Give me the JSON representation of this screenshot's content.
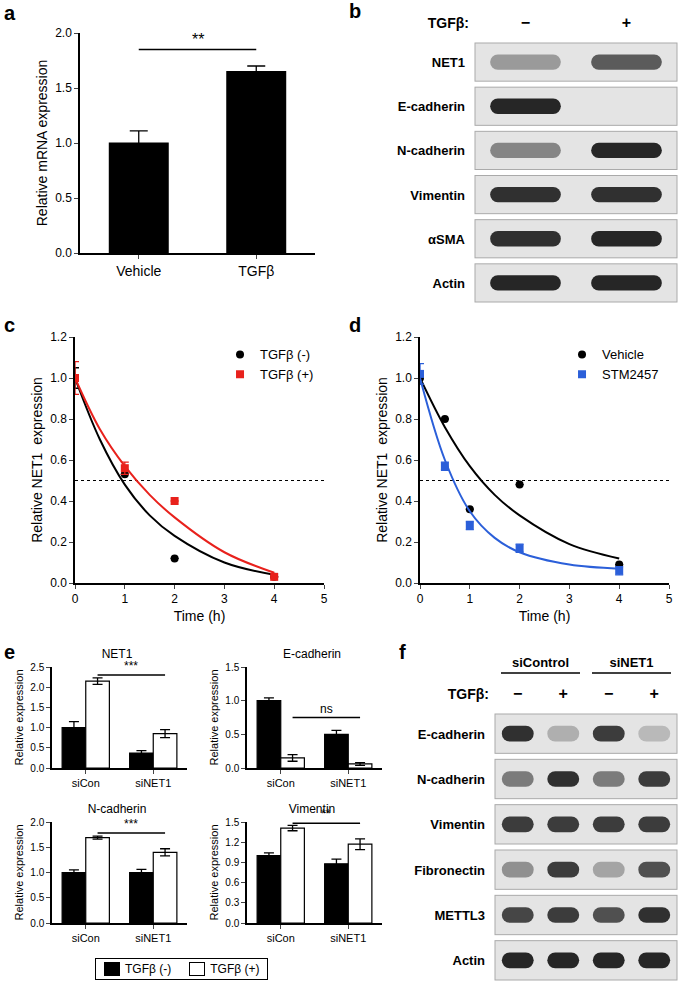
{
  "chart_data": [
    {
      "panel": "a",
      "type": "bar",
      "categories": [
        "Vehicle",
        "TGFβ"
      ],
      "values": [
        1.0,
        1.65
      ],
      "errors": [
        0.11,
        0.05
      ],
      "color": "#000000",
      "ylabel": "Relative mRNA expression",
      "ylim": [
        0,
        2
      ],
      "yticks": [
        {
          "value": 0,
          "label": "0.0"
        },
        0.5,
        {
          "value": 1,
          "label": "1.0"
        },
        1.5,
        {
          "value": 2,
          "label": "2.0"
        }
      ],
      "significance": {
        "text": "**",
        "from": "Vehicle",
        "to": "TGFβ",
        "y": 1.85
      }
    },
    {
      "panel": "c",
      "type": "line",
      "xlabel": "Time (h)",
      "ylabel": "Relative NET1  expression",
      "xlim": [
        0,
        5
      ],
      "xticks": [
        0,
        1,
        2,
        3,
        4,
        5
      ],
      "ylim": [
        0,
        1.2
      ],
      "yticks": [
        {
          "value": 0,
          "label": "0.0"
        },
        0.2,
        0.4,
        0.6,
        0.8,
        {
          "value": 1,
          "label": "1.0"
        },
        1.2
      ],
      "legend": "top-right",
      "reference_line": {
        "y": 0.5,
        "line_style": "dotted"
      },
      "series": [
        {
          "name": "TGFβ (-)",
          "color": "#000000",
          "marker": "circle",
          "x": [
            0,
            1,
            2,
            4
          ],
          "values": [
            1.0,
            0.53,
            0.12,
            0.03
          ],
          "errors": [
            0.05,
            0,
            0,
            0
          ],
          "fit": {
            "x": [
              0,
              0.5,
              1,
              1.5,
              2,
              3,
              4
            ],
            "values": [
              1.0,
              0.7,
              0.48,
              0.33,
              0.23,
              0.1,
              0.04
            ]
          }
        },
        {
          "name": "TGFβ (+)",
          "color": "#e8211c",
          "marker": "square",
          "x": [
            0,
            1,
            2,
            4
          ],
          "values": [
            1.0,
            0.56,
            0.4,
            0.03
          ],
          "errors": [
            0.08,
            0.03,
            0,
            0
          ],
          "fit": {
            "x": [
              0,
              0.5,
              1,
              1.5,
              2,
              3,
              4
            ],
            "values": [
              1.0,
              0.75,
              0.57,
              0.43,
              0.32,
              0.15,
              0.05
            ]
          }
        }
      ]
    },
    {
      "panel": "d",
      "type": "line",
      "xlabel": "Time (h)",
      "ylabel": "Relative NET1  expression",
      "xlim": [
        0,
        5
      ],
      "xticks": [
        0,
        1,
        2,
        3,
        4,
        5
      ],
      "ylim": [
        0,
        1.2
      ],
      "yticks": [
        {
          "value": 0,
          "label": "0.0"
        },
        0.2,
        0.4,
        0.6,
        0.8,
        {
          "value": 1,
          "label": "1.0"
        },
        1.2
      ],
      "legend": "top-right",
      "reference_line": {
        "y": 0.5,
        "line_style": "dotted"
      },
      "series": [
        {
          "name": "Vehicle",
          "color": "#000000",
          "marker": "circle",
          "x": [
            0,
            0.5,
            1,
            2,
            4
          ],
          "values": [
            1.0,
            0.8,
            0.36,
            0.48,
            0.09
          ],
          "errors": [
            0.03,
            0,
            0,
            0,
            0
          ],
          "fit": {
            "x": [
              0,
              0.5,
              1,
              1.5,
              2,
              3,
              4
            ],
            "values": [
              1.0,
              0.76,
              0.57,
              0.43,
              0.33,
              0.19,
              0.12
            ]
          }
        },
        {
          "name": "STM2457",
          "color": "#2b5fd9",
          "marker": "square",
          "x": [
            0,
            0.5,
            1,
            2,
            4
          ],
          "values": [
            1.02,
            0.57,
            0.28,
            0.17,
            0.06
          ],
          "errors": [
            0.05,
            0.02,
            0.02,
            0.02,
            0.02
          ],
          "fit": {
            "x": [
              0,
              0.5,
              1,
              1.5,
              2,
              3,
              4
            ],
            "values": [
              1.0,
              0.6,
              0.35,
              0.22,
              0.15,
              0.09,
              0.07
            ]
          }
        }
      ]
    },
    {
      "panel": "e",
      "type": "bar",
      "title": "NET1",
      "ylabel": "Relative expression",
      "categories": [
        "siCon",
        "siNET1"
      ],
      "ylim": [
        0,
        2.5
      ],
      "yticks": [
        {
          "value": 0,
          "label": "0.0"
        },
        0.5,
        {
          "value": 1,
          "label": "1.0"
        },
        1.5,
        {
          "value": 2,
          "label": "2.0"
        },
        2.5
      ],
      "series": [
        {
          "name": "TGFβ (-)",
          "color": "#000000",
          "values": [
            1.0,
            0.37
          ],
          "errors": [
            0.15,
            0.06
          ]
        },
        {
          "name": "TGFβ (+)",
          "color": "#ffffff",
          "values": [
            2.15,
            0.85
          ],
          "errors": [
            0.08,
            0.1
          ]
        }
      ],
      "significance": {
        "text": "***",
        "series": "TGFβ (+)",
        "y": 2.3
      }
    },
    {
      "type": "bar",
      "title": "E-cadherin",
      "ylabel": "Relative expression",
      "categories": [
        "siCon",
        "siNET1"
      ],
      "ylim": [
        0,
        1.5
      ],
      "yticks": [
        {
          "value": 0,
          "label": "0.0"
        },
        0.5,
        {
          "value": 1,
          "label": "1.0"
        },
        1.5
      ],
      "series": [
        {
          "name": "TGFβ (-)",
          "color": "#000000",
          "values": [
            1.0,
            0.5
          ],
          "errors": [
            0.04,
            0.06
          ]
        },
        {
          "name": "TGFβ (+)",
          "color": "#ffffff",
          "values": [
            0.15,
            0.06
          ],
          "errors": [
            0.05,
            0.02
          ]
        }
      ],
      "significance": {
        "text": "ns",
        "series": "TGFβ (+)",
        "y": 0.75
      }
    },
    {
      "type": "bar",
      "title": "N-cadherin",
      "ylabel": "Relative expression",
      "categories": [
        "siCon",
        "siNET1"
      ],
      "ylim": [
        0,
        2
      ],
      "yticks": [
        {
          "value": 0,
          "label": "0.0"
        },
        0.5,
        {
          "value": 1,
          "label": "1.0"
        },
        1.5,
        {
          "value": 2,
          "label": "2.0"
        }
      ],
      "series": [
        {
          "name": "TGFβ (-)",
          "color": "#000000",
          "values": [
            1.0,
            1.0
          ],
          "errors": [
            0.05,
            0.06
          ]
        },
        {
          "name": "TGFβ (+)",
          "color": "#ffffff",
          "values": [
            1.69,
            1.4
          ],
          "errors": [
            0.03,
            0.07
          ]
        }
      ],
      "significance": {
        "text": "***",
        "series": "TGFβ (+)",
        "y": 1.78
      }
    },
    {
      "type": "bar",
      "title": "Vimentin",
      "ylabel": "Relative expression",
      "categories": [
        "siCon",
        "siNET1"
      ],
      "ylim": [
        0,
        1.5
      ],
      "yticks": [
        {
          "value": 0,
          "label": "0.0"
        },
        0.3,
        0.6,
        0.9,
        1.2,
        1.5
      ],
      "series": [
        {
          "name": "TGFβ (-)",
          "color": "#000000",
          "values": [
            1.0,
            0.88
          ],
          "errors": [
            0.04,
            0.07
          ]
        },
        {
          "name": "TGFβ (+)",
          "color": "#ffffff",
          "values": [
            1.41,
            1.17
          ],
          "errors": [
            0.04,
            0.08
          ]
        }
      ],
      "significance": {
        "text": "**",
        "series": "TGFβ (+)",
        "y": 1.48
      }
    }
  ],
  "blots": [
    {
      "panel": "b",
      "treatment": {
        "label": "TGFβ:",
        "lanes": [
          "−",
          "+"
        ]
      },
      "rows": [
        {
          "label": "NET1",
          "intensity": [
            0.35,
            0.65
          ]
        },
        {
          "label": "E-cadherin",
          "intensity": [
            0.9,
            0
          ]
        },
        {
          "label": "N-cadherin",
          "intensity": [
            0.45,
            0.9
          ]
        },
        {
          "label": "Vimentin",
          "intensity": [
            0.85,
            0.85
          ]
        },
        {
          "label": "αSMA",
          "intensity": [
            0.85,
            0.9
          ]
        },
        {
          "label": "Actin",
          "intensity": [
            0.9,
            0.9
          ]
        }
      ]
    },
    {
      "panel": "f",
      "groups": [
        {
          "label": "siControl",
          "lanes": 2
        },
        {
          "label": "siNET1",
          "lanes": 2
        }
      ],
      "treatment": {
        "label": "TGFβ:",
        "lanes": [
          "−",
          "+",
          "−",
          "+"
        ]
      },
      "rows": [
        {
          "label": "E-cadherin",
          "intensity": [
            0.85,
            0.25,
            0.8,
            0.2
          ]
        },
        {
          "label": "N-cadherin",
          "intensity": [
            0.5,
            0.85,
            0.5,
            0.8
          ]
        },
        {
          "label": "Vimentin",
          "intensity": [
            0.8,
            0.8,
            0.8,
            0.8
          ]
        },
        {
          "label": "Fibronectin",
          "intensity": [
            0.4,
            0.8,
            0.3,
            0.7
          ]
        },
        {
          "label": "METTL3",
          "intensity": [
            0.75,
            0.8,
            0.7,
            0.85
          ]
        },
        {
          "label": "Actin",
          "intensity": [
            0.9,
            0.9,
            0.9,
            0.9
          ]
        }
      ]
    }
  ]
}
